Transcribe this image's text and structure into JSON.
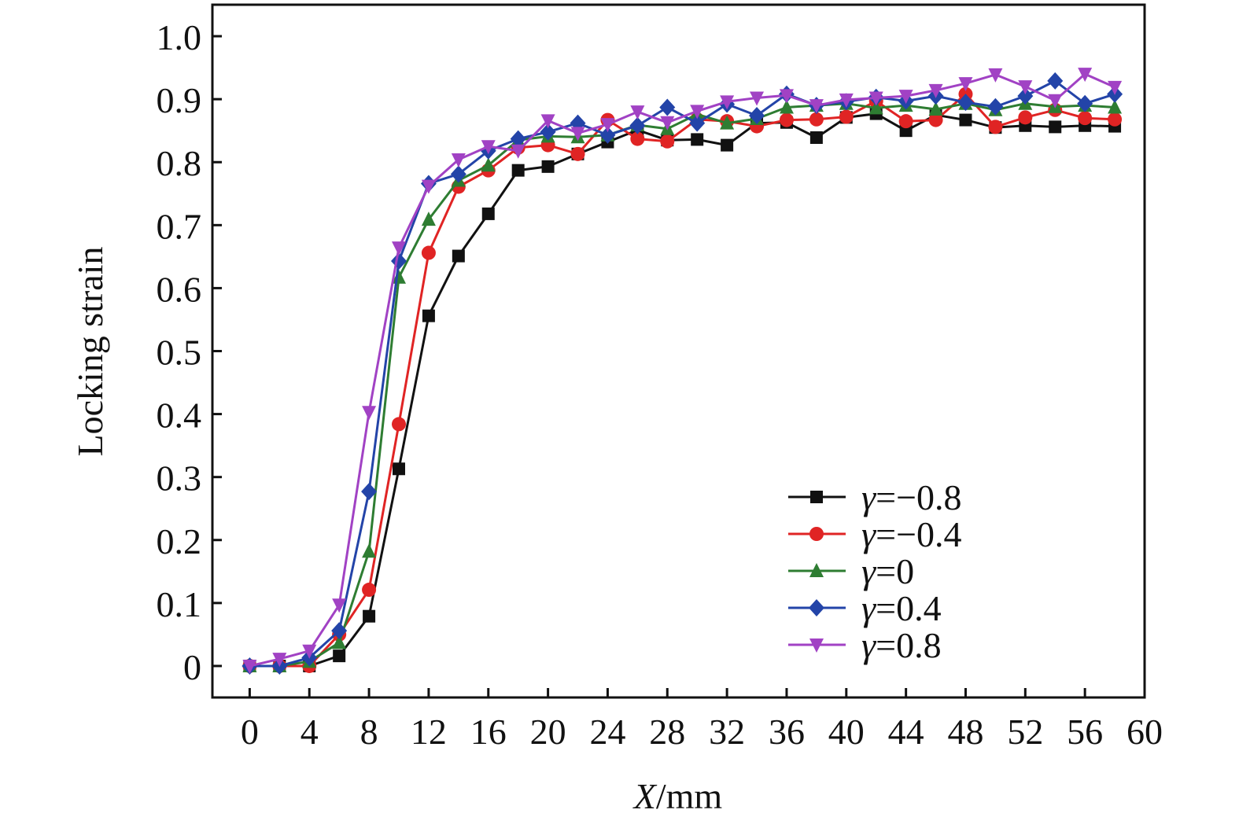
{
  "chart_data": {
    "type": "line",
    "title": "",
    "xlabel_italic": "X",
    "xlabel_unit": "/mm",
    "ylabel": "Locking strain",
    "xlim": [
      -2.5,
      60
    ],
    "ylim": [
      -0.05,
      1.05
    ],
    "xticks": [
      0,
      4,
      8,
      12,
      16,
      20,
      24,
      28,
      32,
      36,
      40,
      44,
      48,
      52,
      56,
      60
    ],
    "xtick_labels": [
      "0",
      "4",
      "8",
      "12",
      "16",
      "20",
      "24",
      "28",
      "32",
      "36",
      "40",
      "44",
      "48",
      "52",
      "56",
      "60"
    ],
    "yticks": [
      0,
      0.1,
      0.2,
      0.3,
      0.4,
      0.5,
      0.6,
      0.7,
      0.8,
      0.9,
      1.0
    ],
    "ytick_labels": [
      "0",
      "0.1",
      "0.2",
      "0.3",
      "0.4",
      "0.5",
      "0.6",
      "0.7",
      "0.8",
      "0.9",
      "1.0"
    ],
    "legend_position": "bottom-right",
    "x": [
      0,
      2,
      4,
      6,
      8,
      10,
      12,
      14,
      16,
      18,
      20,
      22,
      24,
      26,
      28,
      30,
      32,
      34,
      36,
      38,
      40,
      42,
      44,
      46,
      48,
      50,
      52,
      54,
      56,
      58
    ],
    "series": [
      {
        "name": "γ=−0.8",
        "symbol": "γ",
        "value_label": "=−0.8",
        "color": "#111111",
        "marker": "square",
        "values": [
          0,
          0,
          0,
          0.016,
          0.079,
          0.313,
          0.556,
          0.651,
          0.718,
          0.787,
          0.793,
          0.813,
          0.832,
          0.851,
          0.835,
          0.836,
          0.827,
          0.862,
          0.863,
          0.839,
          0.871,
          0.877,
          0.85,
          0.875,
          0.867,
          0.855,
          0.858,
          0.856,
          0.858,
          0.857
        ]
      },
      {
        "name": "γ=−0.4",
        "symbol": "γ",
        "value_label": "=−0.4",
        "color": "#e02424",
        "marker": "circle",
        "values": [
          0,
          0,
          0,
          0.05,
          0.121,
          0.384,
          0.656,
          0.761,
          0.787,
          0.823,
          0.827,
          0.813,
          0.867,
          0.837,
          0.833,
          0.868,
          0.865,
          0.857,
          0.867,
          0.868,
          0.872,
          0.897,
          0.865,
          0.867,
          0.908,
          0.856,
          0.871,
          0.883,
          0.87,
          0.868
        ]
      },
      {
        "name": "γ=0",
        "symbol": "γ",
        "value_label": "=0",
        "color": "#2e7d32",
        "marker": "triangle-up",
        "values": [
          0,
          0,
          0.007,
          0.037,
          0.182,
          0.617,
          0.709,
          0.771,
          0.795,
          0.835,
          0.841,
          0.84,
          0.843,
          0.859,
          0.853,
          0.876,
          0.862,
          0.869,
          0.887,
          0.89,
          0.893,
          0.886,
          0.89,
          0.884,
          0.893,
          0.883,
          0.893,
          0.888,
          0.89,
          0.887
        ]
      },
      {
        "name": "γ=0.4",
        "symbol": "γ",
        "value_label": "=0.4",
        "color": "#2344a8",
        "marker": "diamond",
        "values": [
          0,
          0,
          0.013,
          0.056,
          0.277,
          0.643,
          0.766,
          0.781,
          0.818,
          0.837,
          0.848,
          0.862,
          0.843,
          0.858,
          0.887,
          0.862,
          0.892,
          0.874,
          0.908,
          0.89,
          0.896,
          0.903,
          0.897,
          0.905,
          0.895,
          0.888,
          0.905,
          0.929,
          0.893,
          0.908
        ]
      },
      {
        "name": "γ=0.8",
        "symbol": "γ",
        "value_label": "=0.8",
        "color": "#a142c4",
        "marker": "triangle-down",
        "values": [
          0,
          0.011,
          0.024,
          0.097,
          0.403,
          0.664,
          0.762,
          0.804,
          0.825,
          0.818,
          0.866,
          0.846,
          0.86,
          0.88,
          0.863,
          0.881,
          0.896,
          0.902,
          0.906,
          0.89,
          0.899,
          0.902,
          0.905,
          0.914,
          0.925,
          0.939,
          0.92,
          0.898,
          0.94,
          0.919
        ]
      }
    ]
  }
}
